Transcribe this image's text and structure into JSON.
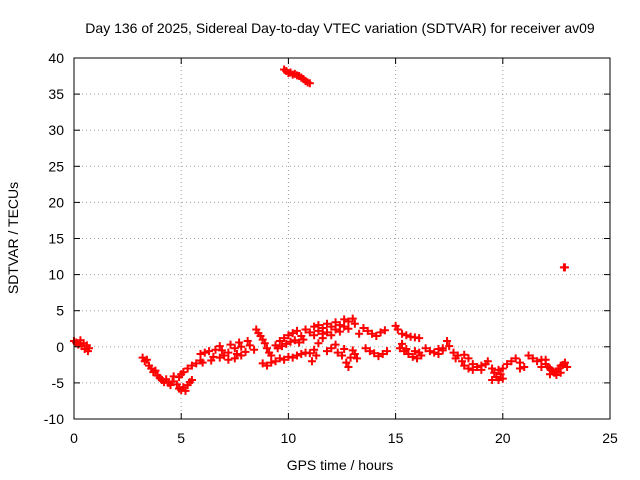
{
  "chart_data": {
    "type": "scatter",
    "title": "Day 136 of 2025, Sidereal Day-to-day VTEC variation (SDTVAR) for receiver av09",
    "xlabel": "GPS time / hours",
    "ylabel": "SDTVAR / TECUs",
    "xlim": [
      0,
      25
    ],
    "ylim": [
      -10,
      40
    ],
    "xticks": [
      0,
      5,
      10,
      15,
      20,
      25
    ],
    "yticks": [
      -10,
      -5,
      0,
      5,
      10,
      15,
      20,
      25,
      30,
      35,
      40
    ],
    "grid": true,
    "marker": "+",
    "colors": {
      "series": "#ff0000",
      "grid": "#a0a0a0",
      "axis": "#000000"
    },
    "series": [
      {
        "name": "SDTVAR",
        "points": [
          [
            0.0,
            0.8
          ],
          [
            0.1,
            0.6
          ],
          [
            0.2,
            0.3
          ],
          [
            0.3,
            0.9
          ],
          [
            0.35,
            0.1
          ],
          [
            0.45,
            0.5
          ],
          [
            0.5,
            -0.3
          ],
          [
            0.6,
            0.2
          ],
          [
            0.65,
            -0.6
          ],
          [
            0.7,
            -0.2
          ],
          [
            3.2,
            -1.5
          ],
          [
            3.3,
            -2.0
          ],
          [
            3.4,
            -1.8
          ],
          [
            3.5,
            -2.6
          ],
          [
            3.6,
            -3.0
          ],
          [
            3.7,
            -3.5
          ],
          [
            3.8,
            -3.3
          ],
          [
            3.9,
            -4.0
          ],
          [
            4.0,
            -4.3
          ],
          [
            4.1,
            -4.6
          ],
          [
            4.2,
            -4.9
          ],
          [
            4.3,
            -4.5
          ],
          [
            4.4,
            -5.0
          ],
          [
            4.5,
            -5.3
          ],
          [
            4.6,
            -4.8
          ],
          [
            4.65,
            -4.1
          ],
          [
            4.8,
            -5.2
          ],
          [
            4.9,
            -5.8
          ],
          [
            5.0,
            -6.0
          ],
          [
            5.1,
            -5.6
          ],
          [
            5.2,
            -6.1
          ],
          [
            5.3,
            -5.3
          ],
          [
            5.4,
            -4.9
          ],
          [
            5.5,
            -4.6
          ],
          [
            4.9,
            -4.2
          ],
          [
            5.0,
            -3.8
          ],
          [
            5.1,
            -3.5
          ],
          [
            5.3,
            -3.0
          ],
          [
            5.5,
            -2.6
          ],
          [
            5.7,
            -2.3
          ],
          [
            5.9,
            -1.9
          ],
          [
            6.0,
            -2.2
          ],
          [
            5.9,
            -1.0
          ],
          [
            6.1,
            -0.8
          ],
          [
            6.3,
            -0.6
          ],
          [
            6.5,
            -1.4
          ],
          [
            6.6,
            -0.4
          ],
          [
            6.8,
            0.1
          ],
          [
            6.9,
            -0.5
          ],
          [
            7.0,
            -1.2
          ],
          [
            7.2,
            -0.8
          ],
          [
            7.3,
            0.3
          ],
          [
            7.5,
            -0.2
          ],
          [
            7.6,
            -1.0
          ],
          [
            7.7,
            0.6
          ],
          [
            7.8,
            0.0
          ],
          [
            8.0,
            -0.7
          ],
          [
            8.1,
            0.8
          ],
          [
            8.2,
            0.2
          ],
          [
            8.4,
            -0.4
          ],
          [
            7.2,
            -1.8
          ],
          [
            7.5,
            -1.6
          ],
          [
            7.8,
            -1.2
          ],
          [
            6.4,
            -1.9
          ],
          [
            6.8,
            -1.5
          ],
          [
            8.5,
            2.4
          ],
          [
            8.6,
            1.9
          ],
          [
            8.7,
            1.5
          ],
          [
            8.8,
            1.0
          ],
          [
            8.9,
            0.5
          ],
          [
            9.0,
            -0.2
          ],
          [
            9.1,
            -0.8
          ],
          [
            9.2,
            -1.2
          ],
          [
            8.8,
            -2.3
          ],
          [
            9.0,
            -2.6
          ],
          [
            9.2,
            -2.2
          ],
          [
            9.4,
            -2.0
          ],
          [
            9.6,
            -1.6
          ],
          [
            9.8,
            -1.8
          ],
          [
            10.0,
            -1.4
          ],
          [
            10.2,
            -1.5
          ],
          [
            10.4,
            -1.2
          ],
          [
            10.6,
            -1.0
          ],
          [
            10.8,
            -0.8
          ],
          [
            9.4,
            0.2
          ],
          [
            9.6,
            0.8
          ],
          [
            9.8,
            1.2
          ],
          [
            10.0,
            1.6
          ],
          [
            10.2,
            1.9
          ],
          [
            10.4,
            2.2
          ],
          [
            10.6,
            1.5
          ],
          [
            10.8,
            2.4
          ],
          [
            11.0,
            2.0
          ],
          [
            11.2,
            1.6
          ],
          [
            11.4,
            2.2
          ],
          [
            11.6,
            1.8
          ],
          [
            9.5,
            -0.2
          ],
          [
            9.7,
            0.1
          ],
          [
            9.9,
            0.4
          ],
          [
            10.1,
            0.7
          ],
          [
            10.3,
            0.9
          ],
          [
            10.5,
            0.6
          ],
          [
            10.7,
            1.0
          ],
          [
            11.0,
            -0.9
          ],
          [
            11.1,
            -2.0
          ],
          [
            11.2,
            -0.4
          ],
          [
            11.3,
            -1.2
          ],
          [
            11.2,
            2.8
          ],
          [
            11.4,
            3.0
          ],
          [
            11.6,
            2.6
          ],
          [
            11.8,
            3.2
          ],
          [
            12.0,
            2.8
          ],
          [
            12.2,
            3.4
          ],
          [
            12.4,
            3.0
          ],
          [
            12.6,
            3.8
          ],
          [
            12.8,
            3.5
          ],
          [
            13.0,
            3.9
          ],
          [
            13.1,
            3.2
          ],
          [
            11.4,
            0.5
          ],
          [
            11.6,
            1.2
          ],
          [
            11.8,
            2.0
          ],
          [
            12.0,
            1.6
          ],
          [
            12.2,
            2.4
          ],
          [
            12.4,
            2.1
          ],
          [
            12.6,
            2.8
          ],
          [
            12.8,
            2.5
          ],
          [
            11.8,
            -0.6
          ],
          [
            12.0,
            -0.2
          ],
          [
            12.2,
            0.3
          ],
          [
            12.3,
            -0.8
          ],
          [
            12.5,
            -1.2
          ],
          [
            12.6,
            -0.3
          ],
          [
            12.7,
            -2.2
          ],
          [
            12.8,
            -2.8
          ],
          [
            12.9,
            -1.5
          ],
          [
            13.0,
            -0.5
          ],
          [
            13.1,
            -1.0
          ],
          [
            13.2,
            -1.6
          ],
          [
            13.3,
            1.8
          ],
          [
            13.5,
            2.6
          ],
          [
            13.7,
            2.2
          ],
          [
            13.9,
            1.8
          ],
          [
            14.1,
            1.5
          ],
          [
            14.3,
            2.0
          ],
          [
            14.5,
            2.3
          ],
          [
            13.6,
            -0.2
          ],
          [
            13.8,
            -0.6
          ],
          [
            14.0,
            -0.9
          ],
          [
            14.2,
            -1.3
          ],
          [
            14.4,
            -1.0
          ],
          [
            14.6,
            -0.6
          ],
          [
            15.0,
            2.9
          ],
          [
            15.1,
            2.4
          ],
          [
            15.3,
            1.8
          ],
          [
            15.5,
            1.6
          ],
          [
            15.7,
            1.4
          ],
          [
            15.9,
            1.3
          ],
          [
            16.1,
            1.2
          ],
          [
            15.2,
            -0.2
          ],
          [
            15.4,
            -0.6
          ],
          [
            15.6,
            -1.0
          ],
          [
            15.8,
            -1.4
          ],
          [
            16.0,
            -1.6
          ],
          [
            16.2,
            -1.2
          ],
          [
            15.3,
            0.4
          ],
          [
            15.5,
            -0.3
          ],
          [
            15.9,
            -0.6
          ],
          [
            16.1,
            -0.8
          ],
          [
            16.4,
            -0.2
          ],
          [
            16.6,
            -0.6
          ],
          [
            16.8,
            -0.8
          ],
          [
            17.0,
            -1.0
          ],
          [
            17.2,
            -0.5
          ],
          [
            17.0,
            -0.3
          ],
          [
            17.2,
            -0.2
          ],
          [
            17.4,
            0.8
          ],
          [
            17.5,
            0.1
          ],
          [
            17.7,
            -0.8
          ],
          [
            17.8,
            -1.6
          ],
          [
            17.9,
            -1.2
          ],
          [
            18.1,
            -2.0
          ],
          [
            18.2,
            -1.1
          ],
          [
            18.4,
            -1.6
          ],
          [
            18.6,
            -2.4
          ],
          [
            18.8,
            -2.8
          ],
          [
            19.0,
            -2.6
          ],
          [
            19.2,
            -2.4
          ],
          [
            19.3,
            -2.0
          ],
          [
            18.2,
            -2.6
          ],
          [
            18.4,
            -3.0
          ],
          [
            18.6,
            -3.2
          ],
          [
            19.0,
            -3.2
          ],
          [
            19.5,
            -3.0
          ],
          [
            19.8,
            -3.2
          ],
          [
            20.0,
            -3.0
          ],
          [
            19.6,
            -3.6
          ],
          [
            19.7,
            -4.2
          ],
          [
            19.8,
            -4.6
          ],
          [
            19.9,
            -3.8
          ],
          [
            19.5,
            -4.6
          ],
          [
            20.0,
            -4.4
          ],
          [
            20.2,
            -2.4
          ],
          [
            20.4,
            -2.0
          ],
          [
            20.6,
            -1.6
          ],
          [
            20.8,
            -2.2
          ],
          [
            21.0,
            -2.8
          ],
          [
            20.8,
            -3.0
          ],
          [
            21.2,
            -1.2
          ],
          [
            21.4,
            -1.6
          ],
          [
            21.6,
            -2.0
          ],
          [
            21.8,
            -1.8
          ],
          [
            22.0,
            -1.8
          ],
          [
            21.8,
            -2.8
          ],
          [
            22.0,
            -2.4
          ],
          [
            22.1,
            -2.8
          ],
          [
            22.2,
            -3.0
          ],
          [
            22.3,
            -3.3
          ],
          [
            22.4,
            -3.6
          ],
          [
            22.5,
            -3.4
          ],
          [
            22.6,
            -3.0
          ],
          [
            22.7,
            -2.6
          ],
          [
            22.8,
            -2.5
          ],
          [
            22.9,
            -2.2
          ],
          [
            23.0,
            -2.8
          ],
          [
            22.2,
            -3.8
          ],
          [
            22.5,
            -3.9
          ],
          [
            22.7,
            -3.6
          ],
          [
            22.85,
            11.0
          ],
          [
            22.9,
            11.0
          ],
          [
            9.8,
            38.4
          ],
          [
            9.9,
            38.2
          ],
          [
            10.0,
            37.9
          ],
          [
            10.1,
            38.0
          ],
          [
            10.2,
            37.7
          ],
          [
            10.3,
            37.8
          ],
          [
            10.4,
            37.6
          ],
          [
            10.5,
            37.5
          ],
          [
            10.6,
            37.3
          ],
          [
            10.7,
            37.1
          ],
          [
            10.8,
            36.8
          ],
          [
            10.9,
            36.6
          ],
          [
            11.0,
            36.5
          ]
        ]
      }
    ]
  }
}
